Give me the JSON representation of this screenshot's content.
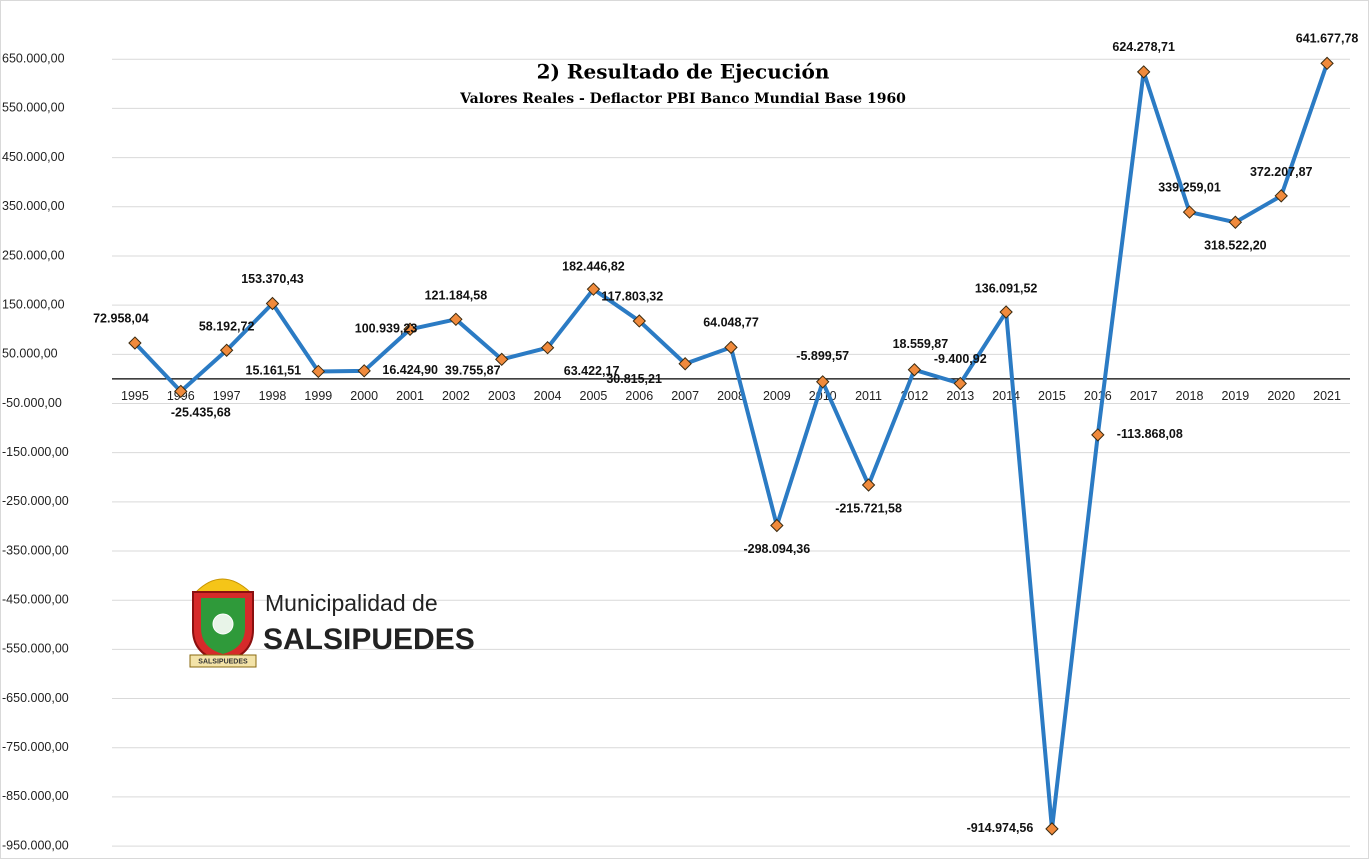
{
  "chart_data": {
    "type": "line",
    "title": "2) Resultado de Ejecución",
    "subtitle": "Valores Reales - Deflactor PBI Banco Mundial Base 1960",
    "categories": [
      "1995",
      "1996",
      "1997",
      "1998",
      "1999",
      "2000",
      "2001",
      "2002",
      "2003",
      "2004",
      "2005",
      "2006",
      "2007",
      "2008",
      "2009",
      "2010",
      "2011",
      "2012",
      "2013",
      "2014",
      "2015",
      "2016",
      "2017",
      "2018",
      "2019",
      "2020",
      "2021"
    ],
    "series": [
      {
        "color": "#2b7bc4",
        "marker_color": "#f08a3c",
        "values": [
          72958.04,
          -25435.68,
          58192.72,
          153370.43,
          15161.51,
          16424.9,
          100939.23,
          121184.58,
          39755.87,
          63422.17,
          182446.82,
          117803.32,
          30815.21,
          64048.77,
          -298094.36,
          -5899.57,
          -215721.58,
          18559.87,
          -9400.92,
          136091.52,
          -914974.56,
          -113868.08,
          624278.71,
          339259.01,
          318522.2,
          372207.87,
          641677.78
        ],
        "value_labels": [
          "72.958,04",
          "-25.435,68",
          "58.192,72",
          "153.370,43",
          "15.161,51",
          "16.424,90",
          "100.939,23",
          "121.184,58",
          "39.755,87",
          "63.422,17",
          "182.446,82",
          "117.803,32",
          "30.815,21",
          "64.048,77",
          "-298.094,36",
          "-5.899,57",
          "-215.721,58",
          "18.559,87",
          "-9.400,92",
          "136.091,52",
          "-914.974,56",
          "-113.868,08",
          "624.278,71",
          "339.259,01",
          "318.522,20",
          "372.207,87",
          "641.677,78"
        ]
      }
    ],
    "ylim": [
      -960000,
      740000
    ],
    "yticks": [
      {
        "value": 650000,
        "label": "650.000,00"
      },
      {
        "value": 550000,
        "label": "550.000,00"
      },
      {
        "value": 450000,
        "label": "450.000,00"
      },
      {
        "value": 350000,
        "label": "350.000,00"
      },
      {
        "value": 250000,
        "label": "250.000,00"
      },
      {
        "value": 150000,
        "label": "150.000,00"
      },
      {
        "value": 50000,
        "label": "50.000,00"
      },
      {
        "value": -50000,
        "label": "-50.000,00"
      },
      {
        "value": -150000,
        "label": "-150.000,00"
      },
      {
        "value": -250000,
        "label": "-250.000,00"
      },
      {
        "value": -350000,
        "label": "-350.000,00"
      },
      {
        "value": -450000,
        "label": "-450.000,00"
      },
      {
        "value": -550000,
        "label": "-550.000,00"
      },
      {
        "value": -650000,
        "label": "-650.000,00"
      },
      {
        "value": -750000,
        "label": "-750.000,00"
      },
      {
        "value": -850000,
        "label": "-850.000,00"
      },
      {
        "value": -950000,
        "label": "-950.000,00"
      }
    ],
    "grid": true
  },
  "logo": {
    "line1": "Municipalidad de",
    "line2": "SALSIPUEDES",
    "ribbon": "SALSIPUEDES"
  }
}
